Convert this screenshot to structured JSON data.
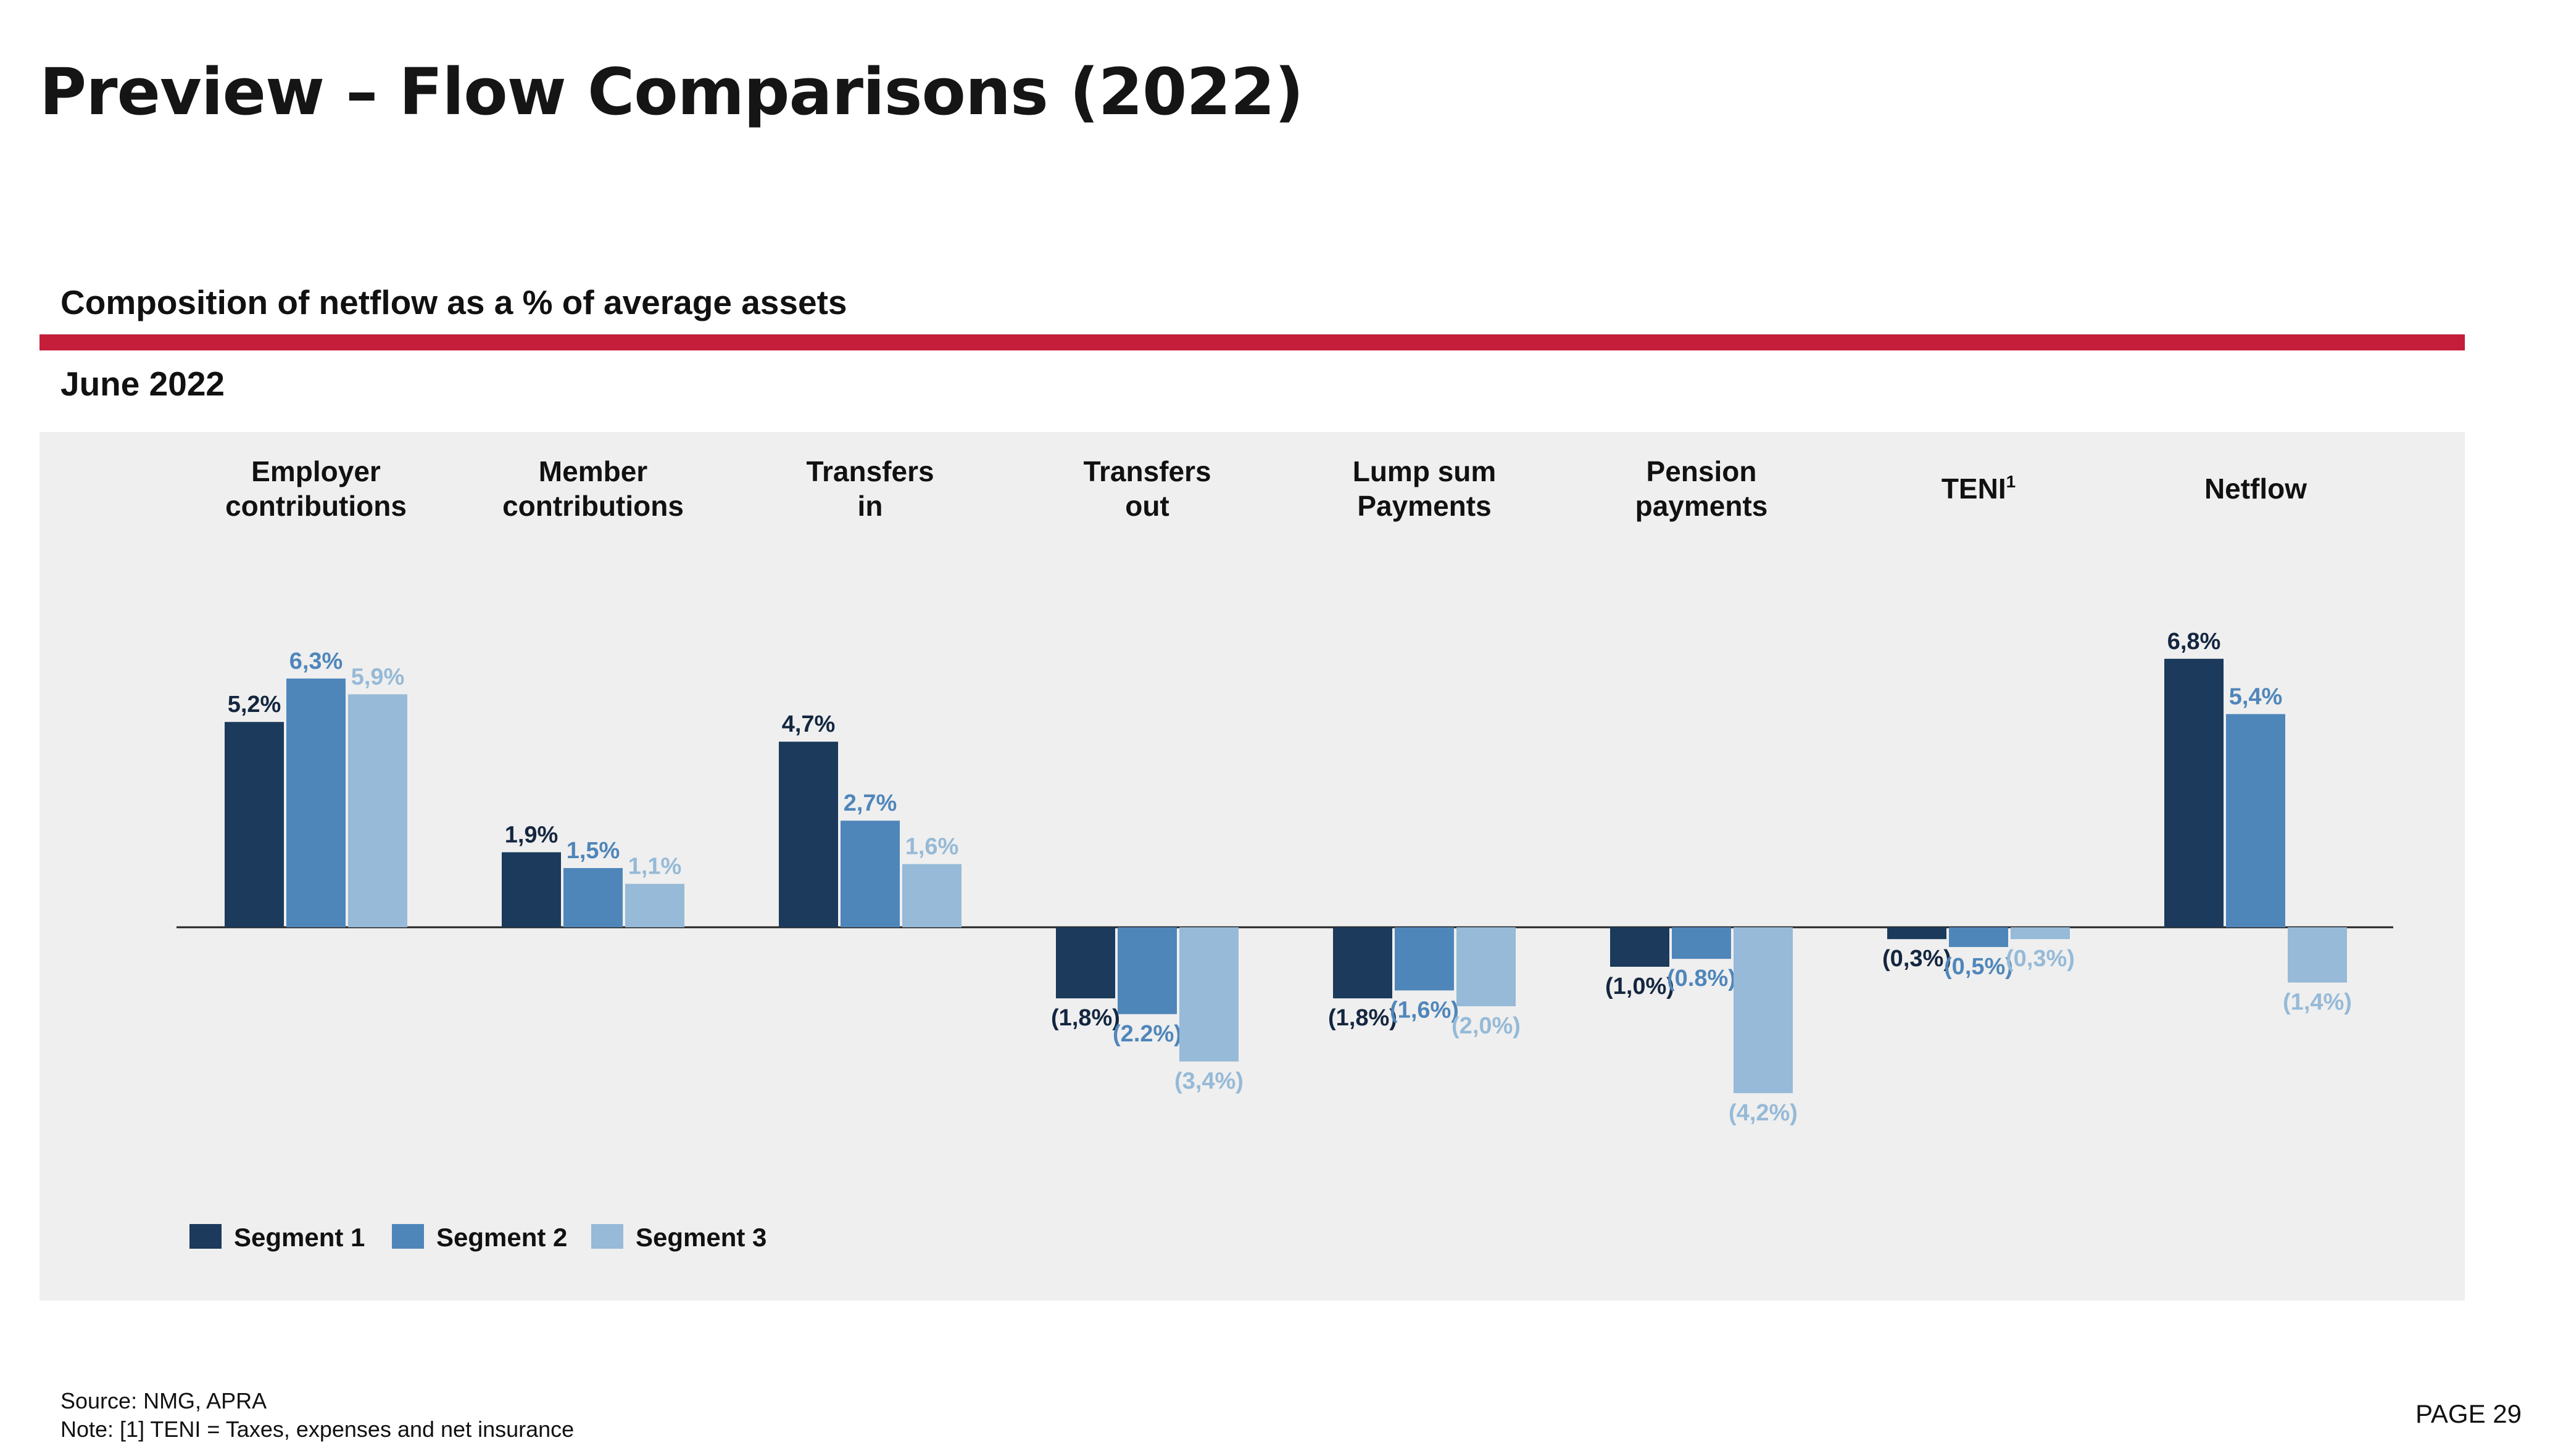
{
  "page": {
    "title": "Preview – Flow Comparisons (2022)",
    "subtitle": "Composition of netflow as a % of average assets",
    "period": "June 2022",
    "source": "Source: NMG, APRA",
    "note": "Note: [1] TENI = Taxes, expenses and net insurance",
    "page_number": "PAGE 29"
  },
  "colors": {
    "accent_red": "#c41e3a",
    "panel_bg": "#efefef",
    "segment_1": "#1b3a5c",
    "segment_2": "#4f86ba",
    "segment_3": "#96bad7"
  },
  "chart_data": {
    "type": "bar",
    "categories": [
      [
        "Employer",
        "contributions"
      ],
      [
        "Member",
        "contributions"
      ],
      [
        "Transfers",
        "in"
      ],
      [
        "Transfers",
        "out"
      ],
      [
        "Lump sum",
        "Payments"
      ],
      [
        "Pension",
        "payments"
      ],
      [
        "TENI",
        ""
      ],
      [
        "Netflow",
        ""
      ]
    ],
    "category_superscripts": [
      "",
      "",
      "",
      "",
      "",
      "",
      "1",
      ""
    ],
    "series": [
      {
        "name": "Segment 1",
        "values": [
          5.2,
          1.9,
          4.7,
          -1.8,
          -1.8,
          -1.0,
          -0.3,
          6.8
        ],
        "labels": [
          "5,2%",
          "1,9%",
          "4,7%",
          "(1,8%)",
          "(1,8%)",
          "(1,0%)",
          "(0,3%)",
          "6,8%"
        ]
      },
      {
        "name": "Segment 2",
        "values": [
          6.3,
          1.5,
          2.7,
          -2.2,
          -1.6,
          -0.8,
          -0.5,
          5.4
        ],
        "labels": [
          "6,3%",
          "1,5%",
          "2,7%",
          "(2.2%)",
          "(1,6%)",
          "(0.8%)",
          "(0,5%)",
          "5,4%"
        ]
      },
      {
        "name": "Segment 3",
        "values": [
          5.9,
          1.1,
          1.6,
          -3.4,
          -2.0,
          -4.2,
          -0.3,
          -1.4
        ],
        "labels": [
          "5,9%",
          "1,1%",
          "1,6%",
          "(3,4%)",
          "(2,0%)",
          "(4,2%)",
          "(0,3%)",
          "(1,4%)"
        ]
      }
    ],
    "legend_position": "bottom-left",
    "grid": false,
    "ylim": [
      -4.2,
      6.8
    ]
  }
}
